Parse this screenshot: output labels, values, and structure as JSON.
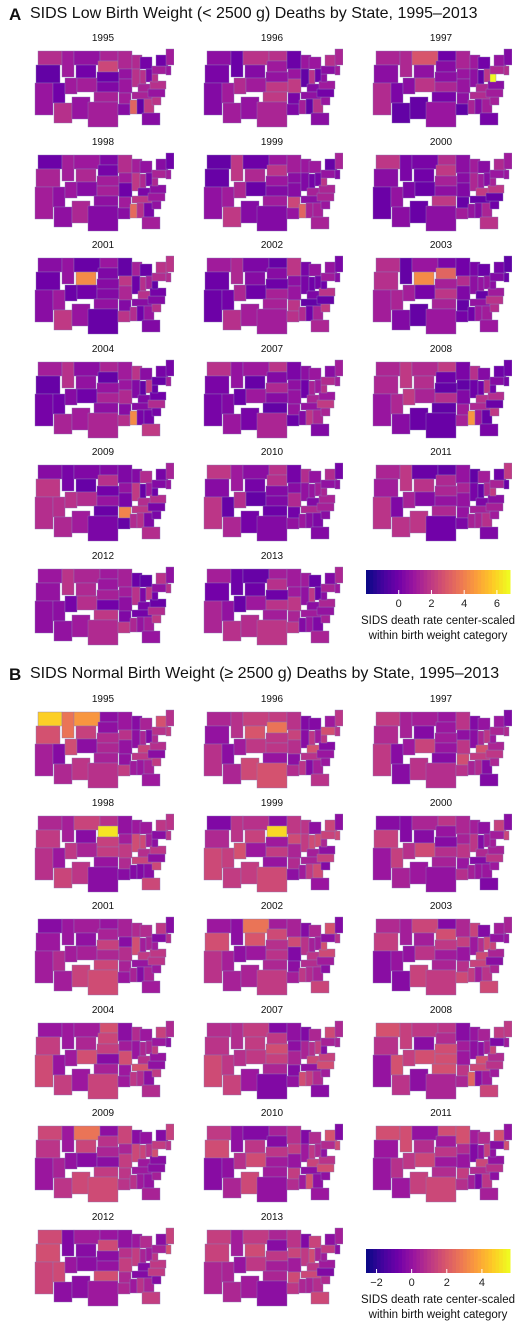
{
  "panels": [
    {
      "letter": "A",
      "title": "SIDS Low Birth Weight (< 2500 g) Deaths by State, 1995–2013",
      "years": [
        "1995",
        "1996",
        "1997",
        "1998",
        "1999",
        "2000",
        "2001",
        "2002",
        "2003",
        "2004",
        "2007",
        "2008",
        "2009",
        "2010",
        "2011",
        "2012",
        "2013"
      ],
      "legend": {
        "ticks": [
          "0",
          "2",
          "4",
          "6"
        ],
        "tick_values": [
          0,
          2,
          4,
          6
        ],
        "range": [
          -2,
          6.8
        ],
        "caption_line1": "SIDS death rate center-scaled",
        "caption_line2": "within birth weight category"
      },
      "highlights": {
        "1997": [
          {
            "state": "WV",
            "level": 1.0
          },
          {
            "state": "MT",
            "level": 0.55
          }
        ],
        "2001": [
          {
            "state": "WY",
            "level": 0.72
          },
          {
            "state": "MT",
            "level": 0.2
          }
        ],
        "2003": [
          {
            "state": "WY",
            "level": 0.72
          },
          {
            "state": "SD",
            "level": 0.6
          }
        ],
        "2004": [
          {
            "state": "MS",
            "level": 0.72
          }
        ],
        "2008": [
          {
            "state": "MS",
            "level": 0.75
          }
        ],
        "2009": [
          {
            "state": "AR",
            "level": 0.7
          }
        ],
        "1995": [
          {
            "state": "MS",
            "level": 0.6
          },
          {
            "state": "SD",
            "level": 0.5
          }
        ],
        "1998": [
          {
            "state": "MS",
            "level": 0.62
          }
        ],
        "1999": [
          {
            "state": "MS",
            "level": 0.6
          },
          {
            "state": "AR",
            "level": 0.5
          }
        ]
      }
    },
    {
      "letter": "B",
      "title": "SIDS Normal Birth Weight (≥ 2500 g) Deaths by State, 1995–2013",
      "years": [
        "1995",
        "1996",
        "1997",
        "1998",
        "1999",
        "2000",
        "2001",
        "2002",
        "2003",
        "2004",
        "2007",
        "2008",
        "2009",
        "2010",
        "2011",
        "2012",
        "2013"
      ],
      "legend": {
        "ticks": [
          "−2",
          "0",
          "2",
          "4"
        ],
        "tick_values": [
          -2,
          0,
          2,
          4
        ],
        "range": [
          -2.6,
          5.6
        ],
        "caption_line1": "SIDS death rate center-scaled",
        "caption_line2": "within birth weight category"
      },
      "highlights": {
        "1995": [
          {
            "state": "WA",
            "level": 0.9
          },
          {
            "state": "MT",
            "level": 0.75
          },
          {
            "state": "ID",
            "level": 0.65
          }
        ],
        "1996": [
          {
            "state": "SD",
            "level": 0.65
          },
          {
            "state": "WY",
            "level": 0.55
          }
        ],
        "1998": [
          {
            "state": "SD",
            "level": 0.95
          }
        ],
        "1999": [
          {
            "state": "SD",
            "level": 0.92
          }
        ],
        "2002": [
          {
            "state": "MT",
            "level": 0.65
          },
          {
            "state": "WY",
            "level": 0.55
          }
        ],
        "2008": [
          {
            "state": "MS",
            "level": 0.6
          }
        ],
        "2009": [
          {
            "state": "MT",
            "level": 0.65
          }
        ]
      }
    }
  ],
  "colors": {
    "scale": [
      "#0d0887",
      "#46039f",
      "#7201a8",
      "#9c179e",
      "#bd3786",
      "#d8576b",
      "#ed7953",
      "#fb9f3a",
      "#fdca26",
      "#f0f921"
    ]
  }
}
